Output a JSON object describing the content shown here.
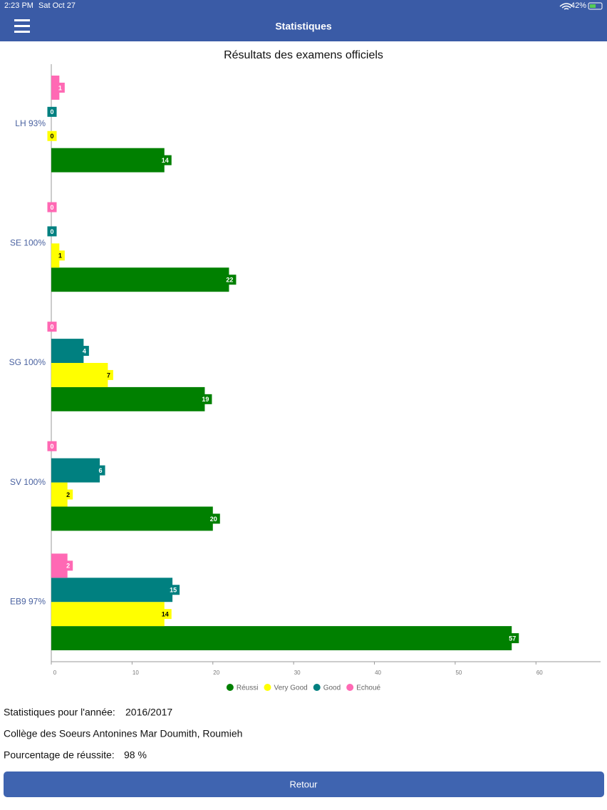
{
  "status_bar": {
    "time": "2:23 PM",
    "date": "Sat Oct 27",
    "battery": "42%"
  },
  "header": {
    "title": "Statistiques"
  },
  "chart_data": {
    "type": "bar",
    "orientation": "horizontal",
    "title": "Résultats des examens officiels",
    "categories": [
      "LH 93%",
      "SE 100%",
      "SG 100%",
      "SV 100%",
      "EB9 97%"
    ],
    "series": [
      {
        "name": "Réussi",
        "color": "#008000",
        "values": [
          14,
          22,
          19,
          20,
          57
        ]
      },
      {
        "name": "Very Good",
        "color": "#ffff00",
        "values": [
          0,
          1,
          7,
          2,
          14
        ]
      },
      {
        "name": "Good",
        "color": "#008080",
        "values": [
          0,
          0,
          4,
          6,
          15
        ]
      },
      {
        "name": "Echoué",
        "color": "#ff69b4",
        "values": [
          1,
          0,
          0,
          0,
          2
        ]
      }
    ],
    "xlim": [
      0,
      68
    ],
    "xticks": [
      0,
      10,
      20,
      30,
      40,
      50,
      60
    ],
    "legend": "bottom"
  },
  "info": {
    "year_label": "Statistiques pour l'année:",
    "year": "2016/2017",
    "school": "Collège des Soeurs Antonines Mar Doumith, Roumieh",
    "rate_label": "Pourcentage de réussite:",
    "rate": "98 %"
  },
  "button": {
    "label": "Retour"
  }
}
